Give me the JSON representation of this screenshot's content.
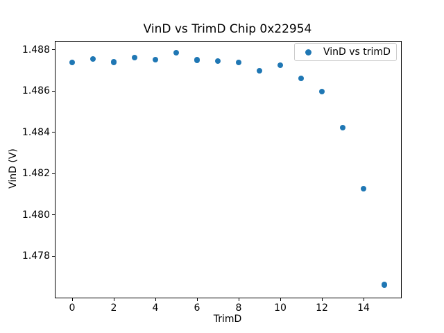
{
  "chart_data": {
    "type": "scatter",
    "title": "VinD vs TrimD Chip 0x22954",
    "xlabel": "TrimD",
    "ylabel": "VinD (V)",
    "legend": "VinD vs trimD",
    "legend_position": "upper right",
    "marker_color": "#1f77b4",
    "grid": false,
    "x": [
      0,
      1,
      2,
      3,
      4,
      5,
      6,
      7,
      8,
      9,
      10,
      11,
      12,
      13,
      14,
      15
    ],
    "y": [
      1.4874,
      1.48755,
      1.48741,
      1.48763,
      1.48752,
      1.48787,
      1.48751,
      1.48746,
      1.48739,
      1.48698,
      1.48726,
      1.48662,
      1.48599,
      1.48423,
      1.48128,
      1.47662
    ],
    "xlim": [
      -0.8,
      15.8
    ],
    "ylim": [
      1.476,
      1.4884
    ],
    "xticks": [
      0,
      2,
      4,
      6,
      8,
      10,
      12,
      14
    ],
    "yticks": [
      1.478,
      1.48,
      1.482,
      1.484,
      1.486,
      1.488
    ]
  }
}
